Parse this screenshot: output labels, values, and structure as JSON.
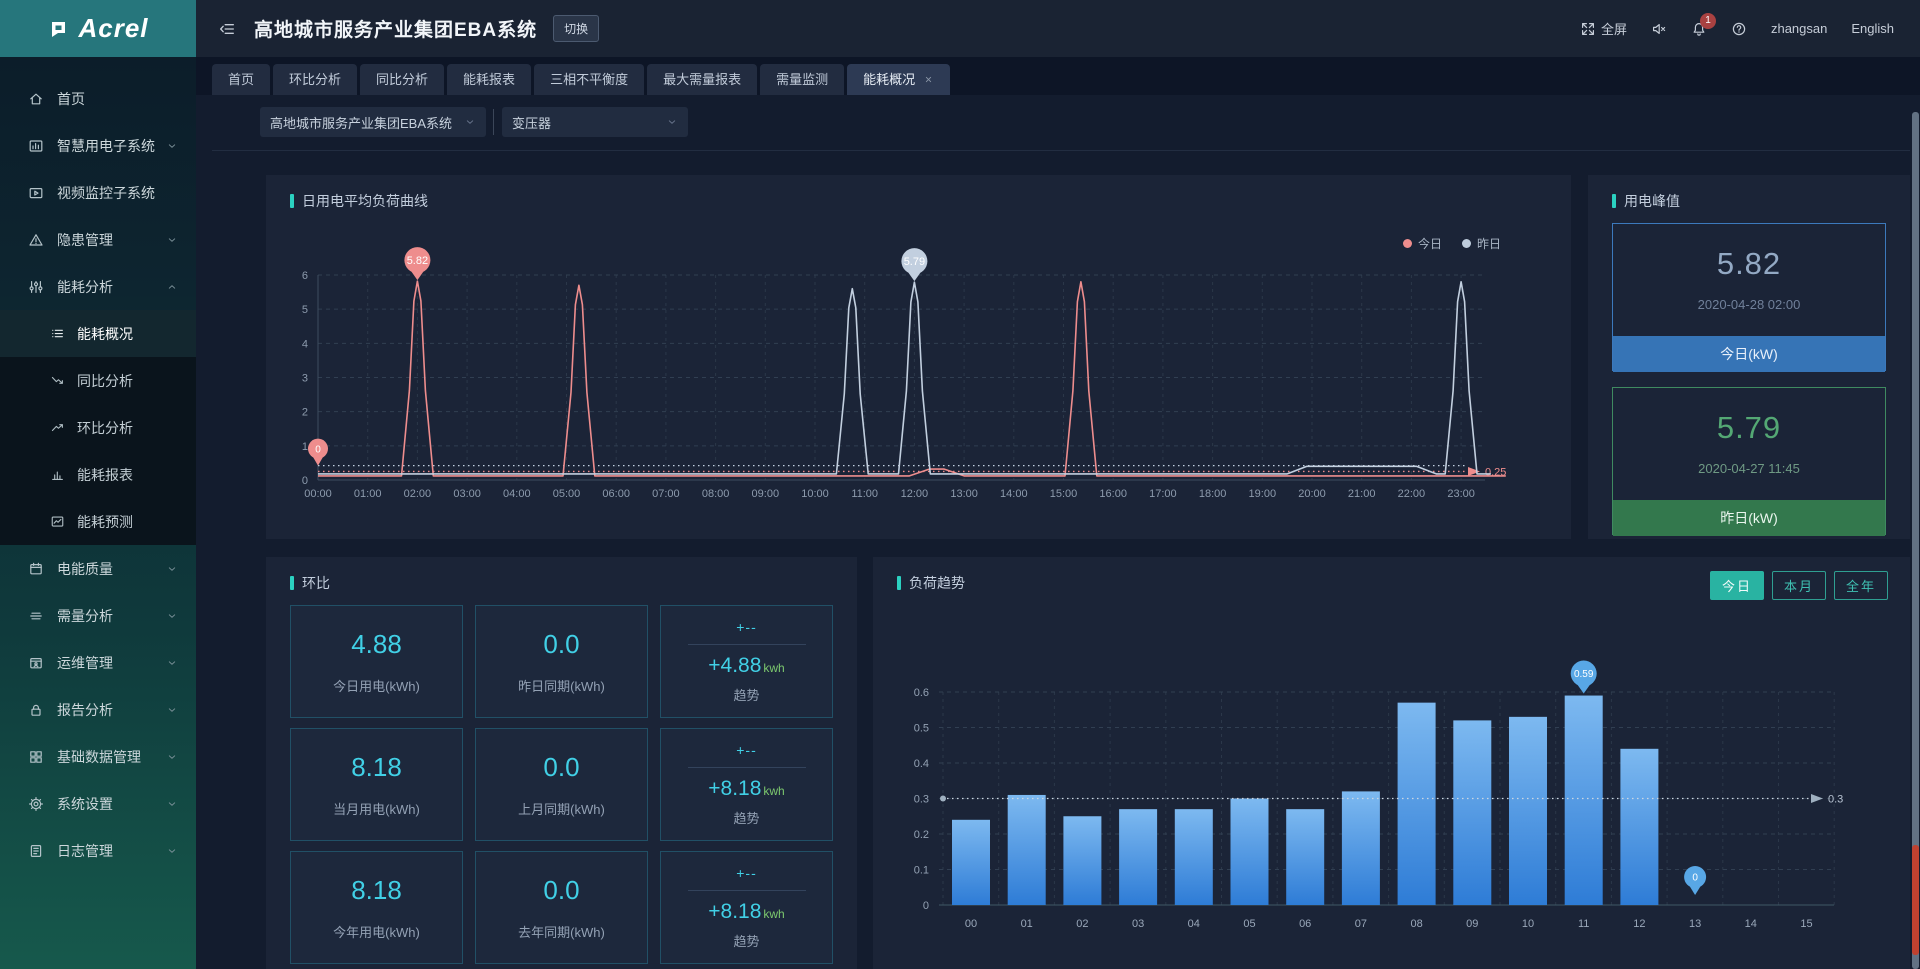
{
  "brand": {
    "name": "Acrel"
  },
  "header": {
    "title": "高地城市服务产业集团EBA系统",
    "switch_button": "切换",
    "fullscreen": "全屏",
    "notification_badge": "1",
    "username": "zhangsan",
    "language": "English"
  },
  "tabs": [
    {
      "label": "首页",
      "active": false,
      "closable": false
    },
    {
      "label": "环比分析",
      "active": false,
      "closable": false
    },
    {
      "label": "同比分析",
      "active": false,
      "closable": false
    },
    {
      "label": "能耗报表",
      "active": false,
      "closable": false
    },
    {
      "label": "三相不平衡度",
      "active": false,
      "closable": false
    },
    {
      "label": "最大需量报表",
      "active": false,
      "closable": false
    },
    {
      "label": "需量监测",
      "active": false,
      "closable": false
    },
    {
      "label": "能耗概况",
      "active": true,
      "closable": true
    }
  ],
  "filters": {
    "project_selector": "高地城市服务产业集团EBA系统",
    "device_selector": "变压器"
  },
  "sidebar": {
    "items": [
      {
        "icon": "home-icon",
        "label": "首页"
      },
      {
        "icon": "smart-power-icon",
        "label": "智慧用电子系统",
        "expandable": true
      },
      {
        "icon": "video-monitor-icon",
        "label": "视频监控子系统"
      },
      {
        "icon": "hazard-icon",
        "label": "隐患管理",
        "expandable": true
      },
      {
        "icon": "energy-analysis-icon",
        "label": "能耗分析",
        "expandable": true,
        "expanded": true,
        "children": [
          {
            "icon": "overview-icon",
            "label": "能耗概况",
            "active": true
          },
          {
            "icon": "yoy-icon",
            "label": "同比分析",
            "active": false
          },
          {
            "icon": "mom-icon",
            "label": "环比分析",
            "active": false
          },
          {
            "icon": "energy-report-icon",
            "label": "能耗报表",
            "active": false
          },
          {
            "icon": "forecast-icon",
            "label": "能耗预测",
            "active": false
          }
        ]
      },
      {
        "icon": "power-quality-icon",
        "label": "电能质量",
        "expandable": true
      },
      {
        "icon": "demand-icon",
        "label": "需量分析",
        "expandable": true
      },
      {
        "icon": "ops-icon",
        "label": "运维管理",
        "expandable": true
      },
      {
        "icon": "report-analysis-icon",
        "label": "报告分析",
        "expandable": true
      },
      {
        "icon": "base-data-icon",
        "label": "基础数据管理",
        "expandable": true
      },
      {
        "icon": "settings-icon",
        "label": "系统设置",
        "expandable": true
      },
      {
        "icon": "log-icon",
        "label": "日志管理",
        "expandable": true
      }
    ]
  },
  "load_curve_panel": {
    "title": "日用电平均负荷曲线",
    "legend": [
      {
        "label": "今日",
        "color": "#ee8d8d"
      },
      {
        "label": "昨日",
        "color": "#bfcddd"
      }
    ]
  },
  "peak_panel": {
    "title": "用电峰值",
    "cards": [
      {
        "value": "5.82",
        "timestamp": "2020-04-28 02:00",
        "label": "今日(kW)",
        "theme": "blue"
      },
      {
        "value": "5.79",
        "timestamp": "2020-04-27 11:45",
        "label": "昨日(kW)",
        "theme": "green"
      }
    ]
  },
  "mom_panel": {
    "title": "环比",
    "cards": [
      {
        "type": "value",
        "value": "4.88",
        "label": "今日用电(kWh)"
      },
      {
        "type": "value",
        "value": "0.0",
        "label": "昨日同期(kWh)"
      },
      {
        "type": "trend",
        "top": "+--",
        "value": "+4.88",
        "unit": "kwh",
        "label": "趋势"
      },
      {
        "type": "value",
        "value": "8.18",
        "label": "当月用电(kWh)"
      },
      {
        "type": "value",
        "value": "0.0",
        "label": "上月同期(kWh)"
      },
      {
        "type": "trend",
        "top": "+--",
        "value": "+8.18",
        "unit": "kwh",
        "label": "趋势"
      },
      {
        "type": "value",
        "value": "8.18",
        "label": "今年用电(kWh)"
      },
      {
        "type": "value",
        "value": "0.0",
        "label": "去年同期(kWh)"
      },
      {
        "type": "trend",
        "top": "+--",
        "value": "+8.18",
        "unit": "kwh",
        "label": "趋势"
      }
    ]
  },
  "load_trend_panel": {
    "title": "负荷趋势",
    "range_buttons": [
      {
        "label": "今日",
        "active": true
      },
      {
        "label": "本月",
        "active": false
      },
      {
        "label": "全年",
        "active": false
      }
    ]
  },
  "chart_data": [
    {
      "id": "daily_load_curve",
      "type": "line",
      "title": "日用电平均负荷曲线",
      "x_ticks": [
        "00:00",
        "01:00",
        "02:00",
        "03:00",
        "04:00",
        "05:00",
        "06:00",
        "07:00",
        "08:00",
        "09:00",
        "10:00",
        "11:00",
        "12:00",
        "13:00",
        "14:00",
        "15:00",
        "16:00",
        "17:00",
        "18:00",
        "19:00",
        "20:00",
        "21:00",
        "22:00",
        "23:00"
      ],
      "ylim": [
        0,
        6
      ],
      "y_ticks": [
        0,
        1,
        2,
        3,
        4,
        5,
        6
      ],
      "grid": true,
      "legend_position": "top-right",
      "series": [
        {
          "name": "今日",
          "color": "#ee8d8d",
          "baseline": 0.12,
          "x_end": 23.9,
          "spikes": [
            {
              "x": 2,
              "peak": 5.82
            },
            {
              "x": 5.25,
              "peak": 5.7
            },
            {
              "x": 15.35,
              "peak": 5.8
            }
          ],
          "bumps": [
            {
              "from": 11.9,
              "to": 13.0,
              "height": 0.32
            }
          ]
        },
        {
          "name": "昨日",
          "color": "#c2cfdf",
          "baseline": 0.18,
          "x_end": 23.6,
          "spikes": [
            {
              "x": 10.75,
              "peak": 5.6
            },
            {
              "x": 12,
              "peak": 5.79
            },
            {
              "x": 23,
              "peak": 5.8
            }
          ],
          "bumps": [
            {
              "from": 19.5,
              "to": 22.5,
              "height": 0.4
            }
          ]
        }
      ],
      "point_markers": [
        {
          "series": 0,
          "x": 2,
          "value": 5.82,
          "label": "5.82"
        },
        {
          "series": 1,
          "x": 12,
          "value": 5.79,
          "label": "5.79"
        },
        {
          "series": 0,
          "x": 0,
          "value": 0,
          "label": "0"
        }
      ],
      "reference_lines": [
        {
          "value": 0.25,
          "color": "#ee8d8d",
          "label": "0.25"
        },
        {
          "value": 0.42,
          "color": "#c2cfdf",
          "label": ""
        }
      ]
    },
    {
      "id": "load_trend",
      "type": "bar",
      "title": "负荷趋势",
      "categories": [
        "00",
        "01",
        "02",
        "03",
        "04",
        "05",
        "06",
        "07",
        "08",
        "09",
        "10",
        "11",
        "12",
        "13",
        "14",
        "15"
      ],
      "values": [
        0.24,
        0.31,
        0.25,
        0.27,
        0.27,
        0.3,
        0.27,
        0.32,
        0.57,
        0.52,
        0.53,
        0.59,
        0.44,
        0,
        0,
        0
      ],
      "ylim": [
        0,
        0.6
      ],
      "y_ticks": [
        0,
        0.1,
        0.2,
        0.3,
        0.4,
        0.5,
        0.6
      ],
      "bar_gradient": [
        "#7db9f0",
        "#2e7cd6"
      ],
      "reference_line": {
        "value": 0.3,
        "label": "0.3",
        "color": "#b7c3d2"
      },
      "point_markers": [
        {
          "x": "11",
          "value": 0.59,
          "label": "0.59"
        },
        {
          "x": "13",
          "value": 0,
          "label": "0"
        }
      ]
    }
  ]
}
